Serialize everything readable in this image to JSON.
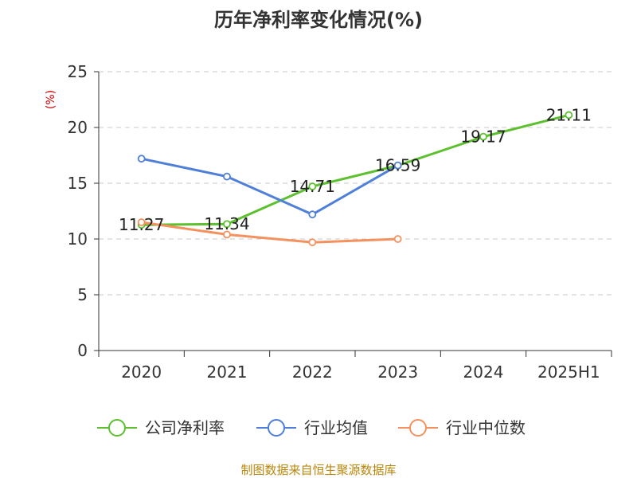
{
  "chart_data": {
    "type": "line",
    "title": "历年净利率变化情况(%)",
    "unit_label": "(%)",
    "categories": [
      "2020",
      "2021",
      "2022",
      "2023",
      "2024",
      "2025H1"
    ],
    "ylim": [
      0,
      25
    ],
    "yticks": [
      0,
      5,
      10,
      15,
      20,
      25
    ],
    "grid": true,
    "legend_position": "bottom",
    "series": [
      {
        "name": "公司净利率",
        "color": "#5cc02f",
        "values": [
          11.27,
          11.34,
          14.71,
          16.59,
          19.17,
          21.11
        ],
        "labels": [
          "11.27",
          "11.34",
          "14.71",
          "16.59",
          "19.17",
          "21.11"
        ]
      },
      {
        "name": "行业均值",
        "color": "#4f7fd8",
        "values": [
          17.2,
          15.6,
          12.2,
          16.6,
          null,
          null
        ]
      },
      {
        "name": "行业中位数",
        "color": "#f5915e",
        "values": [
          11.5,
          10.4,
          9.7,
          10.0,
          null,
          null
        ]
      }
    ]
  },
  "source_text": "制图数据来自恒生聚源数据库"
}
